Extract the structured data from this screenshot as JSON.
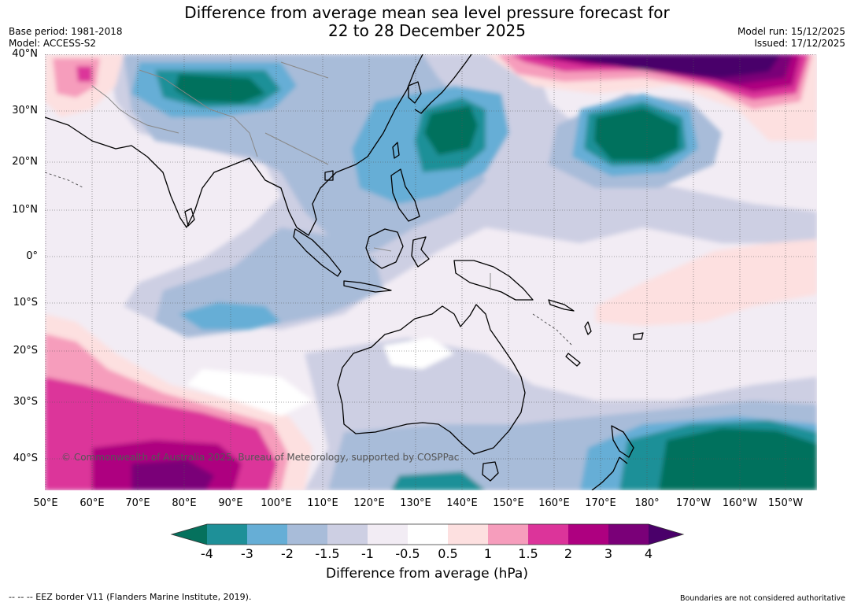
{
  "title_line1": "Difference from average mean sea level pressure forecast for",
  "title_line2": "22 to 28 December 2025",
  "base_period": "Base period: 1981-2018",
  "model": "Model: ACCESS-S2",
  "model_run": "Model run: 15/12/2025",
  "issued": "Issued: 17/12/2025",
  "lat_labels": [
    "40°N",
    "30°N",
    "20°N",
    "10°N",
    "0°",
    "10°S",
    "20°S",
    "30°S",
    "40°S"
  ],
  "lon_labels": [
    "50°E",
    "60°E",
    "70°E",
    "80°E",
    "90°E",
    "100°E",
    "110°E",
    "120°E",
    "130°E",
    "140°E",
    "150°E",
    "160°E",
    "170°E",
    "180°",
    "170°W",
    "160°W",
    "150°W"
  ],
  "copyright": "© Commonwealth of Australia 2025, Bureau of Meteorology, supported by COSPPac",
  "colorbar": {
    "ticks": [
      "-4",
      "-3",
      "-2",
      "-1.5",
      "-1",
      "-0.5",
      "0.5",
      "1",
      "1.5",
      "2",
      "3",
      "4"
    ],
    "colors": [
      "#1e9098",
      "#66aed6",
      "#a8bcd9",
      "#cdcfe3",
      "#f2ecf4",
      "#ffffff",
      "#fde0e0",
      "#f69dbc",
      "#dc349a",
      "#ae0080",
      "#7a0078"
    ],
    "low_extend_color": "#05715d",
    "high_extend_color": "#4a006a",
    "title": "Difference from average (hPa)"
  },
  "footer_left": "--  --  -- EEZ border V11 (Flanders Marine Institute, 2019).",
  "footer_right": "Boundaries are not considered authoritative"
}
